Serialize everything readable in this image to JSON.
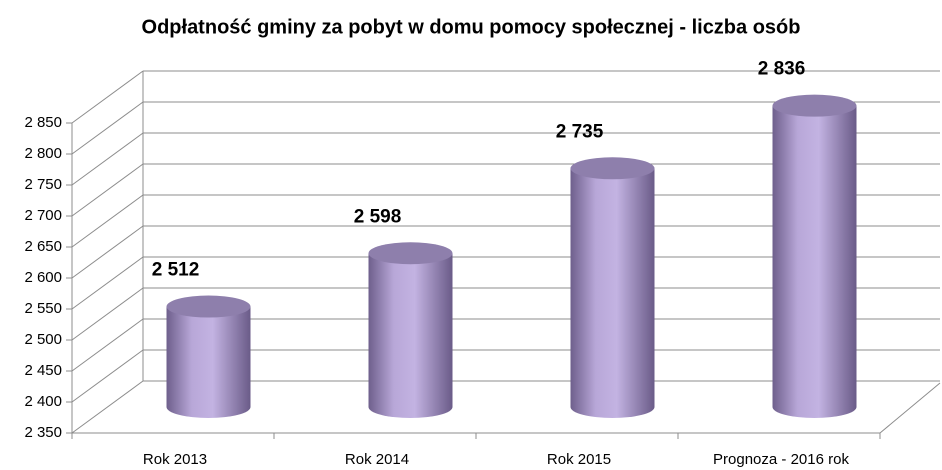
{
  "chart_data": {
    "type": "bar3d",
    "title": "Odpłatność gminy za pobyt w domu pomocy społecznej - liczba osób",
    "categories": [
      "Rok 2013",
      "Rok 2014",
      "Rok 2015",
      "Prognoza - 2016 rok"
    ],
    "values": [
      2512,
      2598,
      2735,
      2836
    ],
    "value_labels": [
      "2 512",
      "2 598",
      "2 735",
      "2 836"
    ],
    "color": "#b4a2d4",
    "ylim": [
      2350,
      2850
    ],
    "yticks": [
      {
        "value": 2350,
        "label": "2 350"
      },
      {
        "value": 2400,
        "label": "2 400"
      },
      {
        "value": 2450,
        "label": "2 450"
      },
      {
        "value": 2500,
        "label": "2 500"
      },
      {
        "value": 2550,
        "label": "2 550"
      },
      {
        "value": 2600,
        "label": "2 600"
      },
      {
        "value": 2650,
        "label": "2 650"
      },
      {
        "value": 2700,
        "label": "2 700"
      },
      {
        "value": 2750,
        "label": "2 750"
      },
      {
        "value": 2800,
        "label": "2 800"
      },
      {
        "value": 2850,
        "label": "2 850"
      }
    ],
    "grid": true
  }
}
